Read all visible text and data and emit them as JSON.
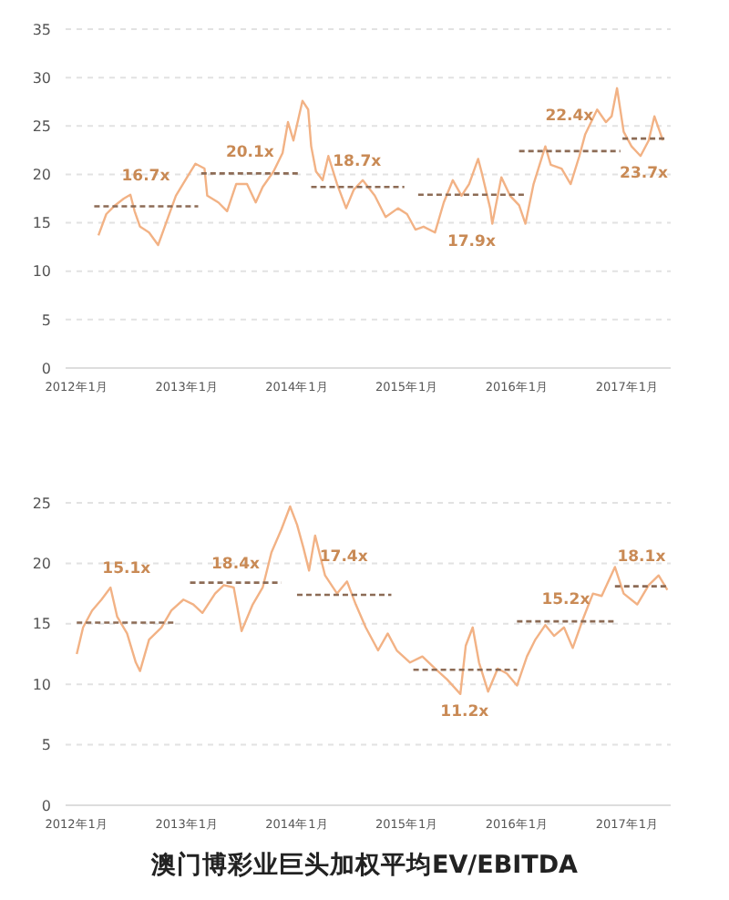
{
  "chart_data": [
    {
      "type": "line",
      "xlim": [
        "2011-11-25",
        "2017-05-25"
      ],
      "ylim": [
        0,
        35
      ],
      "yticks": [
        0,
        5,
        10,
        15,
        20,
        25,
        30,
        35
      ],
      "xticks": [
        {
          "value": "2012-01-01",
          "label": "2012年1月"
        },
        {
          "value": "2013-01-01",
          "label": "2013年1月"
        },
        {
          "value": "2014-01-01",
          "label": "2014年1月"
        },
        {
          "value": "2015-01-01",
          "label": "2015年1月"
        },
        {
          "value": "2016-01-01",
          "label": "2016年1月"
        },
        {
          "value": "2017-01-01",
          "label": "2017年1月"
        }
      ],
      "grid": "y",
      "marker": "none",
      "series": [
        {
          "type": "line",
          "color": "#f2b285",
          "line_style": "solid",
          "x": [
            "2012-03-13",
            "2012-04-08",
            "2012-05-07",
            "2012-06-05",
            "2012-06-27",
            "2012-07-11",
            "2012-07-29",
            "2012-08-28",
            "2012-09-27",
            "2012-10-26",
            "2012-11-25",
            "2013-01-01",
            "2013-01-29",
            "2013-02-28",
            "2013-03-09",
            "2013-04-15",
            "2013-05-14",
            "2013-06-13",
            "2013-07-19",
            "2013-08-17",
            "2013-09-09",
            "2013-10-15",
            "2013-11-14",
            "2013-12-02",
            "2013-12-20",
            "2014-01-19",
            "2014-02-07",
            "2014-02-17",
            "2014-03-05",
            "2014-03-27",
            "2014-04-15",
            "2014-05-14",
            "2014-06-13",
            "2014-07-08",
            "2014-08-07",
            "2014-09-16",
            "2014-10-22",
            "2014-12-02",
            "2015-01-01",
            "2015-01-29",
            "2015-02-25",
            "2015-04-04",
            "2015-05-03",
            "2015-06-02",
            "2015-07-01",
            "2015-07-26",
            "2015-08-25",
            "2015-09-05",
            "2015-10-04",
            "2015-10-11",
            "2015-11-10",
            "2015-12-09",
            "2016-01-08",
            "2016-01-29",
            "2016-02-25",
            "2016-04-04",
            "2016-04-22",
            "2016-05-28",
            "2016-06-27",
            "2016-07-26",
            "2016-08-14",
            "2016-09-23",
            "2016-10-22",
            "2016-11-10",
            "2016-11-28",
            "2016-12-20",
            "2017-01-15",
            "2017-02-14",
            "2017-03-13",
            "2017-04-01",
            "2017-04-29"
          ],
          "values": [
            13.7,
            15.9,
            16.8,
            17.5,
            17.9,
            16.2,
            14.6,
            14.0,
            12.7,
            15.2,
            17.8,
            19.7,
            21.1,
            20.6,
            17.8,
            17.1,
            16.2,
            19.0,
            19.0,
            17.1,
            18.7,
            20.3,
            22.2,
            25.4,
            23.5,
            27.6,
            26.7,
            22.9,
            20.3,
            19.4,
            21.9,
            19.0,
            16.5,
            18.4,
            19.4,
            17.8,
            15.6,
            16.5,
            15.9,
            14.3,
            14.6,
            14.0,
            17.1,
            19.4,
            17.8,
            19.0,
            21.6,
            20.3,
            16.5,
            14.9,
            19.7,
            17.8,
            16.8,
            14.9,
            19.0,
            22.9,
            21.0,
            20.6,
            19.0,
            21.9,
            24.1,
            26.7,
            25.4,
            26.0,
            28.9,
            24.4,
            22.9,
            21.9,
            23.5,
            26.0,
            23.5
          ]
        },
        {
          "type": "line",
          "color": "#8c6b55",
          "line_style": "dashed",
          "x": [
            "2012-02-28",
            "2013-02-07"
          ],
          "values": [
            16.7,
            16.7
          ]
        },
        {
          "type": "line",
          "color": "#8c6b55",
          "line_style": "dashed",
          "x": [
            "2013-02-17",
            "2014-01-11"
          ],
          "values": [
            20.1,
            20.1
          ]
        },
        {
          "type": "line",
          "color": "#8c6b55",
          "line_style": "dashed",
          "x": [
            "2014-02-17",
            "2014-12-23"
          ],
          "values": [
            18.7,
            18.7
          ]
        },
        {
          "type": "line",
          "color": "#8c6b55",
          "line_style": "dashed",
          "x": [
            "2015-02-07",
            "2016-01-29"
          ],
          "values": [
            17.9,
            17.9
          ]
        },
        {
          "type": "line",
          "color": "#8c6b55",
          "line_style": "dashed",
          "x": [
            "2016-01-08",
            "2016-12-09"
          ],
          "values": [
            22.4,
            22.4
          ]
        },
        {
          "type": "line",
          "color": "#8c6b55",
          "line_style": "dashed",
          "x": [
            "2016-12-16",
            "2017-05-07"
          ],
          "values": [
            23.7,
            23.7
          ]
        }
      ],
      "annotations": [
        {
          "text": "16.7x",
          "x": "2012-08-17",
          "y": 16.7
        },
        {
          "text": "20.1x",
          "x": "2013-07-29",
          "y": 20.1
        },
        {
          "text": "18.7x",
          "x": "2014-07-19",
          "y": 18.7
        },
        {
          "text": "17.9x",
          "x": "2015-08-03",
          "y": 17.9
        },
        {
          "text": "22.4x",
          "x": "2016-06-23",
          "y": 22.4
        },
        {
          "text": "23.7x",
          "x": "2017-02-25",
          "y": 23.7
        }
      ]
    },
    {
      "type": "line",
      "title": "澳门博彩业巨头加权平均EV/EBITDA",
      "xlim": [
        "2011-11-25",
        "2017-05-25"
      ],
      "ylim": [
        0,
        25
      ],
      "yticks": [
        0,
        5,
        10,
        15,
        20,
        25
      ],
      "xticks": [
        {
          "value": "2012-01-01",
          "label": "2012年1月"
        },
        {
          "value": "2013-01-01",
          "label": "2013年1月"
        },
        {
          "value": "2014-01-01",
          "label": "2014年1月"
        },
        {
          "value": "2015-01-01",
          "label": "2015年1月"
        },
        {
          "value": "2016-01-01",
          "label": "2016年1月"
        },
        {
          "value": "2017-01-01",
          "label": "2017年1月"
        }
      ],
      "grid": "y",
      "marker": "none",
      "series": [
        {
          "type": "line",
          "color": "#f2b285",
          "line_style": "solid",
          "x": [
            "2012-01-01",
            "2012-01-22",
            "2012-02-21",
            "2012-03-23",
            "2012-04-22",
            "2012-05-14",
            "2012-06-16",
            "2012-07-15",
            "2012-07-29",
            "2012-08-28",
            "2012-10-08",
            "2012-11-10",
            "2012-12-20",
            "2013-01-22",
            "2013-02-21",
            "2013-04-04",
            "2013-05-03",
            "2013-06-05",
            "2013-07-01",
            "2013-08-07",
            "2013-09-09",
            "2013-10-08",
            "2013-11-10",
            "2013-12-09",
            "2014-01-01",
            "2014-01-22",
            "2014-02-10",
            "2014-03-02",
            "2014-04-04",
            "2014-05-14",
            "2014-06-16",
            "2014-07-15",
            "2014-08-17",
            "2014-09-27",
            "2014-10-29",
            "2014-11-28",
            "2015-01-11",
            "2015-02-21",
            "2015-04-04",
            "2015-05-14",
            "2015-06-27",
            "2015-07-15",
            "2015-08-07",
            "2015-08-28",
            "2015-09-27",
            "2015-10-29",
            "2015-11-28",
            "2016-01-01",
            "2016-02-03",
            "2016-03-02",
            "2016-04-04",
            "2016-05-03",
            "2016-06-05",
            "2016-07-04",
            "2016-08-07",
            "2016-09-09",
            "2016-10-08",
            "2016-11-21",
            "2016-12-20",
            "2017-02-03",
            "2017-03-13",
            "2017-04-15",
            "2017-05-14"
          ],
          "values": [
            12.5,
            14.7,
            16.1,
            17.0,
            18.0,
            15.6,
            14.2,
            11.8,
            11.1,
            13.7,
            14.7,
            16.1,
            17.0,
            16.6,
            15.9,
            17.5,
            18.2,
            18.0,
            14.4,
            16.6,
            18.0,
            20.9,
            22.8,
            24.7,
            23.2,
            21.3,
            19.4,
            22.3,
            19.0,
            17.5,
            18.5,
            16.6,
            14.7,
            12.8,
            14.2,
            12.8,
            11.8,
            12.3,
            11.3,
            10.4,
            9.2,
            13.2,
            14.7,
            11.8,
            9.4,
            11.3,
            10.9,
            9.9,
            12.3,
            13.7,
            14.9,
            14.0,
            14.7,
            13.0,
            15.4,
            17.5,
            17.3,
            19.7,
            17.5,
            16.6,
            18.2,
            19.0,
            17.8
          ]
        },
        {
          "type": "line",
          "color": "#8c6b55",
          "line_style": "dashed",
          "x": [
            "2012-01-01",
            "2012-11-28"
          ],
          "values": [
            15.1,
            15.1
          ]
        },
        {
          "type": "line",
          "color": "#8c6b55",
          "line_style": "dashed",
          "x": [
            "2013-01-11",
            "2013-11-10"
          ],
          "values": [
            18.4,
            18.4
          ]
        },
        {
          "type": "line",
          "color": "#8c6b55",
          "line_style": "dashed",
          "x": [
            "2014-01-01",
            "2014-11-10"
          ],
          "values": [
            17.4,
            17.4
          ]
        },
        {
          "type": "line",
          "color": "#8c6b55",
          "line_style": "dashed",
          "x": [
            "2015-01-22",
            "2016-01-01"
          ],
          "values": [
            11.2,
            11.2
          ]
        },
        {
          "type": "line",
          "color": "#8c6b55",
          "line_style": "dashed",
          "x": [
            "2016-01-01",
            "2016-11-21"
          ],
          "values": [
            15.2,
            15.2
          ]
        },
        {
          "type": "line",
          "color": "#8c6b55",
          "line_style": "dashed",
          "x": [
            "2016-11-21",
            "2017-05-14"
          ],
          "values": [
            18.1,
            18.1
          ]
        }
      ],
      "annotations": [
        {
          "text": "15.1x",
          "x": "2012-06-14",
          "y": 15.1
        },
        {
          "text": "18.4x",
          "x": "2013-06-11",
          "y": 18.4
        },
        {
          "text": "17.4x",
          "x": "2014-06-05",
          "y": 17.4
        },
        {
          "text": "11.2x",
          "x": "2015-07-11",
          "y": 11.2
        },
        {
          "text": "15.2x",
          "x": "2016-06-11",
          "y": 15.2
        },
        {
          "text": "18.1x",
          "x": "2017-02-17",
          "y": 18.1
        }
      ]
    }
  ]
}
